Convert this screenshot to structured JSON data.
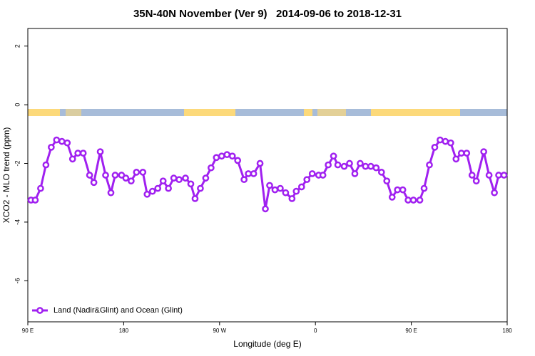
{
  "chart_data": {
    "type": "line",
    "title": "35N-40N November (Ver 9)   2014-09-06 to 2018-12-31",
    "x_label": "Longitude (deg E)",
    "y_label": "XCO2 - MLO trend (ppm)",
    "x": [
      93,
      97,
      102,
      107,
      112,
      117,
      122,
      127,
      132,
      137,
      142,
      148,
      152,
      158,
      163,
      168,
      172,
      178,
      182,
      187,
      192,
      198,
      202,
      207,
      212,
      217,
      222,
      227,
      232,
      238,
      243,
      247,
      252,
      257,
      262,
      267,
      272,
      277,
      282,
      287,
      293,
      297,
      302,
      308,
      313,
      317,
      322,
      327,
      332,
      338,
      342,
      347,
      352,
      357,
      363,
      367,
      372,
      377,
      381,
      387,
      392,
      397,
      402,
      407,
      412,
      417,
      422,
      427,
      432,
      437,
      442,
      447,
      452,
      458,
      462,
      467,
      472,
      477,
      482,
      487,
      492,
      497,
      502,
      507,
      511,
      518,
      523,
      528,
      532,
      537
    ],
    "series": [
      {
        "name": "Land (Nadir&Glint) and Ocean (Glint)",
        "color": "#a020f0",
        "values": [
          -3.25,
          -3.25,
          -2.85,
          -2.05,
          -1.45,
          -1.2,
          -1.25,
          -1.3,
          -1.85,
          -1.65,
          -1.65,
          -2.4,
          -2.65,
          -1.6,
          -2.4,
          -3.0,
          -2.4,
          -2.4,
          -2.5,
          -2.6,
          -2.3,
          -2.3,
          -3.05,
          -2.95,
          -2.85,
          -2.6,
          -2.85,
          -2.5,
          -2.55,
          -2.5,
          -2.7,
          -3.2,
          -2.85,
          -2.5,
          -2.15,
          -1.8,
          -1.75,
          -1.7,
          -1.75,
          -1.9,
          -2.55,
          -2.35,
          -2.35,
          -2.0,
          -3.55,
          -2.75,
          -2.9,
          -2.85,
          -3.0,
          -3.2,
          -2.95,
          -2.8,
          -2.55,
          -2.35,
          -2.4,
          -2.4,
          -2.05,
          -1.75,
          -2.05,
          -2.1,
          -2.0,
          -2.35,
          -2.0,
          -2.1,
          -2.1,
          -2.15,
          -2.3,
          -2.6,
          -3.15,
          -2.9,
          -2.9,
          -3.25,
          -3.25,
          -3.25,
          -2.85,
          -2.05,
          -1.45,
          -1.2,
          -1.25,
          -1.3,
          -1.85,
          -1.65,
          -1.65,
          -2.4,
          -2.6,
          -1.6,
          -2.4,
          -3.0,
          -2.4,
          -2.4
        ]
      }
    ],
    "xlim": [
      90,
      540
    ],
    "xticks": [
      {
        "value": 90,
        "label": "90 E"
      },
      {
        "value": 180,
        "label": "180"
      },
      {
        "value": 270,
        "label": "90 W"
      },
      {
        "value": 360,
        "label": "0"
      },
      {
        "value": 450,
        "label": "90 E"
      },
      {
        "value": 540,
        "label": "180"
      }
    ],
    "ylim": [
      -7.4,
      2.6
    ],
    "yticks": [
      2,
      0,
      -2,
      -4,
      -6
    ],
    "legend": "bottom-left"
  }
}
